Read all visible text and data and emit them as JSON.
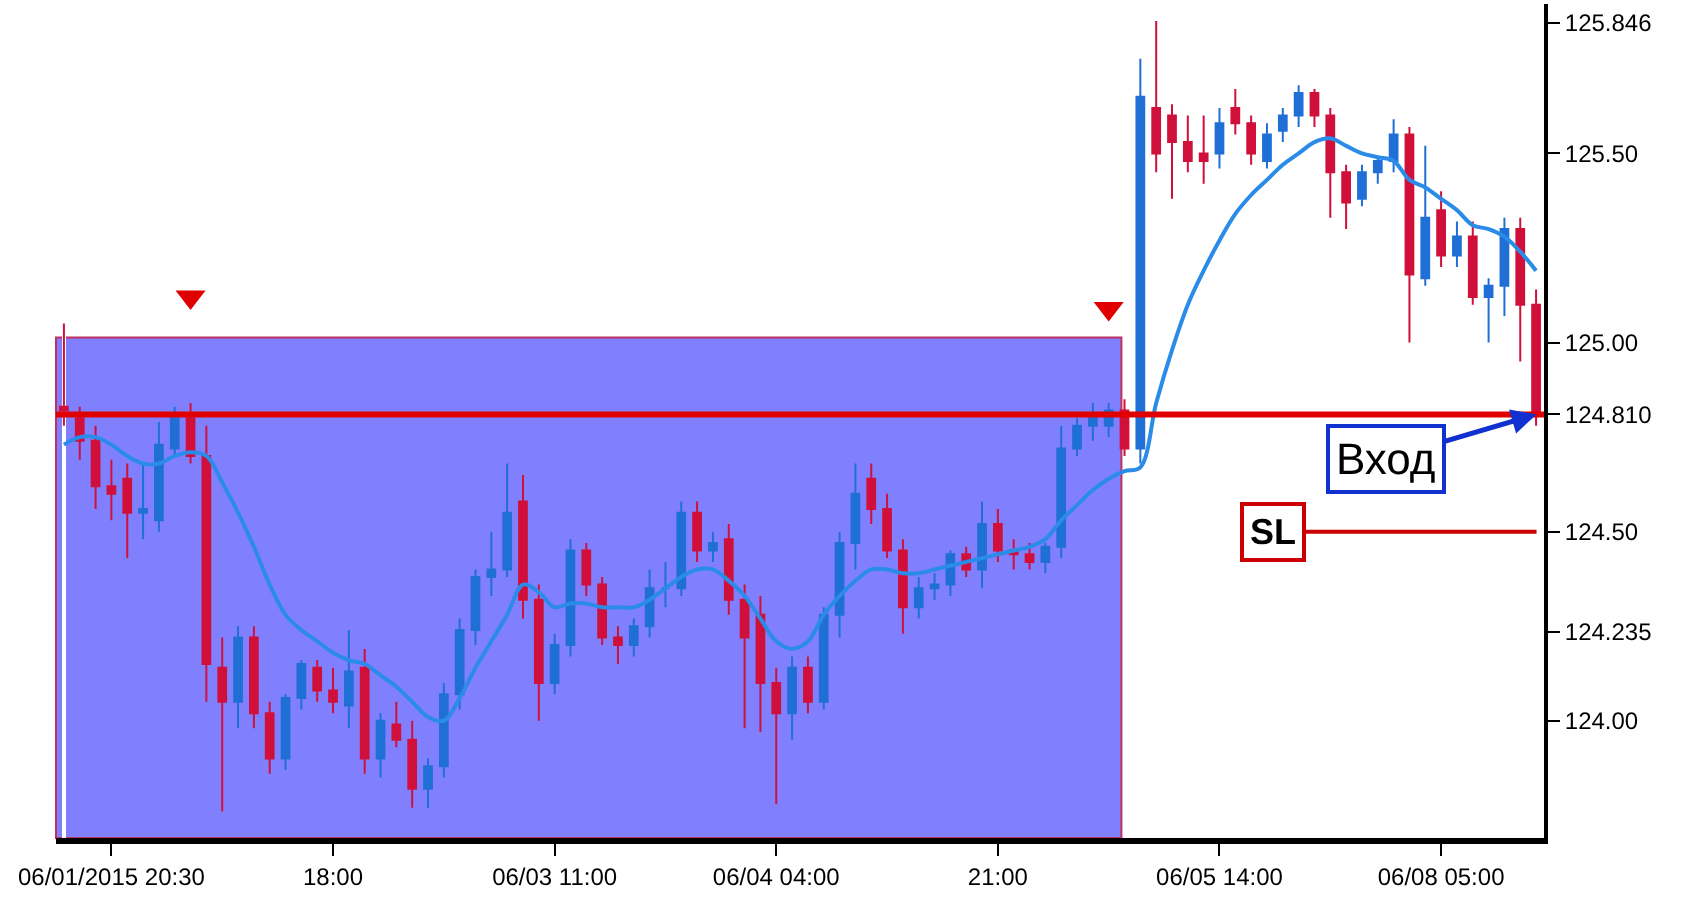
{
  "chart_data": {
    "type": "candlestick",
    "categories": [
      null,
      null,
      null,
      "06/01/2015 20:30",
      null,
      null,
      null,
      null,
      null,
      null,
      null,
      null,
      null,
      null,
      null,
      null,
      null,
      "18:00",
      null,
      null,
      null,
      null,
      null,
      null,
      null,
      null,
      null,
      null,
      null,
      null,
      null,
      "06/03 11:00",
      null,
      null,
      null,
      null,
      null,
      null,
      null,
      null,
      null,
      null,
      null,
      null,
      null,
      "06/04 04:00",
      null,
      null,
      null,
      null,
      null,
      null,
      null,
      null,
      null,
      null,
      null,
      null,
      null,
      "21:00",
      null,
      null,
      null,
      null,
      null,
      null,
      null,
      null,
      null,
      null,
      null,
      null,
      null,
      "06/05 14:00",
      null,
      null,
      null,
      null,
      null,
      null,
      null,
      null,
      null,
      null,
      null,
      null,
      null,
      "06/08 05:00",
      null,
      null,
      null,
      null,
      null,
      null
    ],
    "ohlc": [
      [
        124.83,
        125.05,
        124.78,
        124.82
      ],
      [
        124.8,
        124.83,
        124.69,
        124.74
      ],
      [
        124.74,
        124.78,
        124.56,
        124.62
      ],
      [
        124.62,
        124.69,
        124.53,
        124.6
      ],
      [
        124.64,
        124.68,
        124.43,
        124.55
      ],
      [
        124.55,
        124.68,
        124.48,
        124.56
      ],
      [
        124.53,
        124.79,
        124.5,
        124.73
      ],
      [
        124.72,
        124.83,
        124.7,
        124.8
      ],
      [
        124.8,
        124.84,
        124.68,
        124.7
      ],
      [
        124.7,
        124.78,
        124.05,
        124.15
      ],
      [
        124.14,
        124.22,
        123.76,
        124.05
      ],
      [
        124.05,
        124.25,
        123.98,
        124.22
      ],
      [
        124.22,
        124.25,
        123.98,
        124.02
      ],
      [
        124.02,
        124.05,
        123.86,
        123.9
      ],
      [
        123.9,
        124.07,
        123.87,
        124.06
      ],
      [
        124.06,
        124.16,
        124.03,
        124.15
      ],
      [
        124.14,
        124.16,
        124.05,
        124.08
      ],
      [
        124.08,
        124.14,
        124.02,
        124.05
      ],
      [
        124.04,
        124.24,
        123.98,
        124.13
      ],
      [
        124.14,
        124.19,
        123.86,
        123.9
      ],
      [
        123.9,
        124.02,
        123.85,
        124.0
      ],
      [
        123.99,
        124.05,
        123.93,
        123.95
      ],
      [
        123.95,
        124.0,
        123.77,
        123.82
      ],
      [
        123.82,
        123.9,
        123.77,
        123.88
      ],
      [
        123.88,
        124.1,
        123.85,
        124.07
      ],
      [
        124.07,
        124.27,
        124.03,
        124.24
      ],
      [
        124.24,
        124.4,
        124.2,
        124.38
      ],
      [
        124.38,
        124.5,
        124.33,
        124.4
      ],
      [
        124.4,
        124.68,
        124.38,
        124.55
      ],
      [
        124.58,
        124.65,
        124.27,
        124.32
      ],
      [
        124.32,
        124.36,
        124.0,
        124.1
      ],
      [
        124.1,
        124.23,
        124.07,
        124.2
      ],
      [
        124.2,
        124.48,
        124.17,
        124.45
      ],
      [
        124.45,
        124.47,
        124.33,
        124.36
      ],
      [
        124.36,
        124.38,
        124.2,
        124.22
      ],
      [
        124.22,
        124.25,
        124.15,
        124.2
      ],
      [
        124.2,
        124.27,
        124.17,
        124.25
      ],
      [
        124.25,
        124.4,
        124.22,
        124.35
      ],
      [
        124.35,
        124.42,
        124.3,
        124.35
      ],
      [
        124.35,
        124.58,
        124.33,
        124.55
      ],
      [
        124.55,
        124.58,
        124.42,
        124.45
      ],
      [
        124.45,
        124.5,
        124.42,
        124.47
      ],
      [
        124.48,
        124.52,
        124.28,
        124.32
      ],
      [
        124.32,
        124.36,
        123.98,
        124.22
      ],
      [
        124.28,
        124.33,
        123.97,
        124.1
      ],
      [
        124.1,
        124.14,
        123.78,
        124.02
      ],
      [
        124.02,
        124.17,
        123.95,
        124.14
      ],
      [
        124.14,
        124.17,
        124.02,
        124.05
      ],
      [
        124.05,
        124.3,
        124.03,
        124.28
      ],
      [
        124.28,
        124.5,
        124.22,
        124.47
      ],
      [
        124.47,
        124.68,
        124.4,
        124.6
      ],
      [
        124.64,
        124.68,
        124.52,
        124.56
      ],
      [
        124.56,
        124.6,
        124.43,
        124.45
      ],
      [
        124.45,
        124.48,
        124.23,
        124.3
      ],
      [
        124.3,
        124.38,
        124.27,
        124.35
      ],
      [
        124.35,
        124.39,
        124.32,
        124.36
      ],
      [
        124.36,
        124.45,
        124.33,
        124.44
      ],
      [
        124.44,
        124.46,
        124.38,
        124.4
      ],
      [
        124.4,
        124.58,
        124.35,
        124.52
      ],
      [
        124.52,
        124.56,
        124.42,
        124.45
      ],
      [
        124.45,
        124.48,
        124.4,
        124.44
      ],
      [
        124.44,
        124.47,
        124.4,
        124.42
      ],
      [
        124.42,
        124.47,
        124.39,
        124.46
      ],
      [
        124.46,
        124.78,
        124.43,
        124.72
      ],
      [
        124.72,
        124.8,
        124.7,
        124.78
      ],
      [
        124.78,
        124.84,
        124.74,
        124.8
      ],
      [
        124.78,
        124.84,
        124.75,
        124.82
      ],
      [
        124.82,
        124.85,
        124.7,
        124.72
      ],
      [
        124.72,
        125.75,
        124.68,
        125.65
      ],
      [
        125.62,
        125.85,
        125.45,
        125.5
      ],
      [
        125.6,
        125.63,
        125.38,
        125.53
      ],
      [
        125.53,
        125.6,
        125.45,
        125.48
      ],
      [
        125.5,
        125.6,
        125.42,
        125.48
      ],
      [
        125.5,
        125.62,
        125.46,
        125.58
      ],
      [
        125.62,
        125.67,
        125.55,
        125.58
      ],
      [
        125.58,
        125.6,
        125.47,
        125.5
      ],
      [
        125.48,
        125.58,
        125.46,
        125.55
      ],
      [
        125.56,
        125.62,
        125.53,
        125.6
      ],
      [
        125.6,
        125.68,
        125.57,
        125.66
      ],
      [
        125.66,
        125.67,
        125.57,
        125.6
      ],
      [
        125.6,
        125.62,
        125.33,
        125.45
      ],
      [
        125.45,
        125.47,
        125.3,
        125.37
      ],
      [
        125.38,
        125.47,
        125.36,
        125.45
      ],
      [
        125.45,
        125.49,
        125.42,
        125.48
      ],
      [
        125.48,
        125.59,
        125.45,
        125.55
      ],
      [
        125.55,
        125.57,
        125.0,
        125.18
      ],
      [
        125.17,
        125.52,
        125.15,
        125.33
      ],
      [
        125.35,
        125.4,
        125.2,
        125.23
      ],
      [
        125.23,
        125.32,
        125.2,
        125.28
      ],
      [
        125.28,
        125.32,
        125.1,
        125.12
      ],
      [
        125.12,
        125.17,
        125.0,
        125.15
      ],
      [
        125.15,
        125.33,
        125.07,
        125.3
      ],
      [
        125.3,
        125.33,
        124.95,
        125.1
      ],
      [
        125.1,
        125.14,
        124.78,
        124.81
      ]
    ],
    "series": [
      {
        "type": "line",
        "color": "#2b8be8",
        "values": [
          124.73,
          124.75,
          124.75,
          124.73,
          124.7,
          124.68,
          124.68,
          124.7,
          124.71,
          124.7,
          124.63,
          124.55,
          124.46,
          124.36,
          124.28,
          124.24,
          124.21,
          124.18,
          124.16,
          124.15,
          124.12,
          124.09,
          124.05,
          124.01,
          124.0,
          124.06,
          124.14,
          124.21,
          124.28,
          124.36,
          124.34,
          124.3,
          124.31,
          124.31,
          124.3,
          124.3,
          124.3,
          124.32,
          124.35,
          124.38,
          124.4,
          124.4,
          124.37,
          124.33,
          124.27,
          124.21,
          124.19,
          124.21,
          124.28,
          124.33,
          124.37,
          124.4,
          124.4,
          124.39,
          124.39,
          124.4,
          124.41,
          124.42,
          124.43,
          124.44,
          124.45,
          124.46,
          124.48,
          124.53,
          124.57,
          124.61,
          124.64,
          124.66,
          124.67,
          124.84,
          124.98,
          125.1,
          125.19,
          125.27,
          125.34,
          125.39,
          125.43,
          125.47,
          125.5,
          125.53,
          125.54,
          125.52,
          125.5,
          125.49,
          125.48,
          125.43,
          125.41,
          125.38,
          125.35,
          125.31,
          125.3,
          125.28,
          125.24,
          125.19
        ]
      },
      {
        "type": "scatter",
        "marker": "triangle",
        "color": "#e00000",
        "values": [
          null,
          null,
          null,
          null,
          null,
          null,
          null,
          null,
          125.12,
          null,
          null,
          null,
          null,
          null,
          null,
          null,
          null,
          null,
          null,
          null,
          null,
          null,
          null,
          null,
          null,
          null,
          null,
          null,
          null,
          null,
          null,
          null,
          null,
          null,
          null,
          null,
          null,
          null,
          null,
          null,
          null,
          null,
          null,
          null,
          null,
          null,
          null,
          null,
          null,
          null,
          null,
          null,
          null,
          null,
          null,
          null,
          null,
          null,
          null,
          null,
          null,
          null,
          null,
          null,
          null,
          null,
          125.09,
          null,
          null,
          null,
          null,
          null,
          null,
          null,
          null,
          null,
          null,
          null,
          null,
          null,
          null,
          null,
          null,
          null,
          null,
          null,
          null,
          null,
          null,
          null,
          null,
          null,
          null,
          null
        ]
      }
    ],
    "ylim": [
      123.69,
      125.895
    ],
    "yticks": [
      {
        "value": 124.0,
        "label": "124.00"
      },
      {
        "value": 124.235,
        "label": "124.235"
      },
      {
        "value": 124.5,
        "label": "124.50"
      },
      {
        "value": 124.81,
        "label": "124.810"
      },
      {
        "value": 125.0,
        "label": "125.00"
      },
      {
        "value": 125.5,
        "label": "125.50"
      },
      {
        "value": 125.846,
        "label": "125.846"
      }
    ],
    "ref_lines": [
      {
        "axis": "y",
        "value": 124.81,
        "color": "#e00000"
      },
      {
        "axis": "y",
        "value": 124.5,
        "label": "SL",
        "color": "#cc0000"
      }
    ],
    "annotations": [
      {
        "text": "Вход",
        "y": 124.81
      }
    ],
    "grid": false,
    "legend": false
  }
}
